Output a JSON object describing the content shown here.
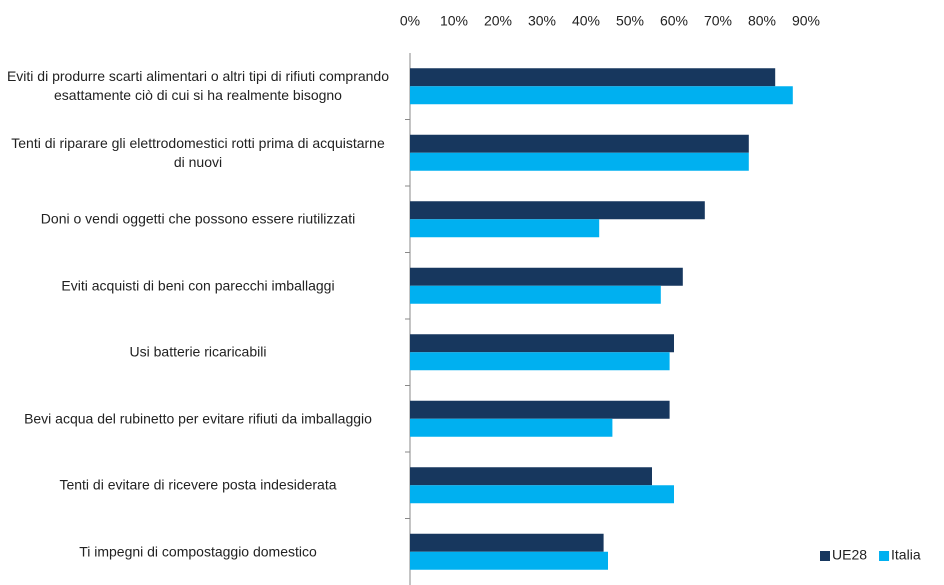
{
  "chart_data": {
    "type": "barh",
    "categories": [
      "Eviti di produrre scarti alimentari o altri tipi di rifiuti comprando esattamente ciò di cui si ha realmente bisogno",
      "Tenti di riparare gli elettrodomestici rotti prima di acquistarne di nuovi",
      "Doni o vendi oggetti che possono essere riutilizzati",
      "Eviti acquisti di beni con parecchi imballaggi",
      "Usi batterie ricaricabili",
      "Bevi acqua del rubinetto per evitare rifiuti da imballaggio",
      "Tenti di evitare di ricevere posta indesiderata",
      "Ti impegni di compostaggio domestico"
    ],
    "series": [
      {
        "name": "UE28",
        "color": "#17375e",
        "values": [
          83,
          77,
          67,
          62,
          60,
          59,
          55,
          44
        ]
      },
      {
        "name": "Italia",
        "color": "#00b0f0",
        "values": [
          87,
          77,
          43,
          57,
          59,
          46,
          60,
          45
        ]
      }
    ],
    "xlim": [
      0,
      90
    ],
    "xticks": [
      {
        "value": 0,
        "label": "0%"
      },
      {
        "value": 10,
        "label": "10%"
      },
      {
        "value": 20,
        "label": "20%"
      },
      {
        "value": 30,
        "label": "30%"
      },
      {
        "value": 40,
        "label": "40%"
      },
      {
        "value": 50,
        "label": "50%"
      },
      {
        "value": 60,
        "label": "60%"
      },
      {
        "value": 70,
        "label": "70%"
      },
      {
        "value": 80,
        "label": "80%"
      },
      {
        "value": 90,
        "label": "90%"
      }
    ],
    "legend": "bottom-right"
  }
}
